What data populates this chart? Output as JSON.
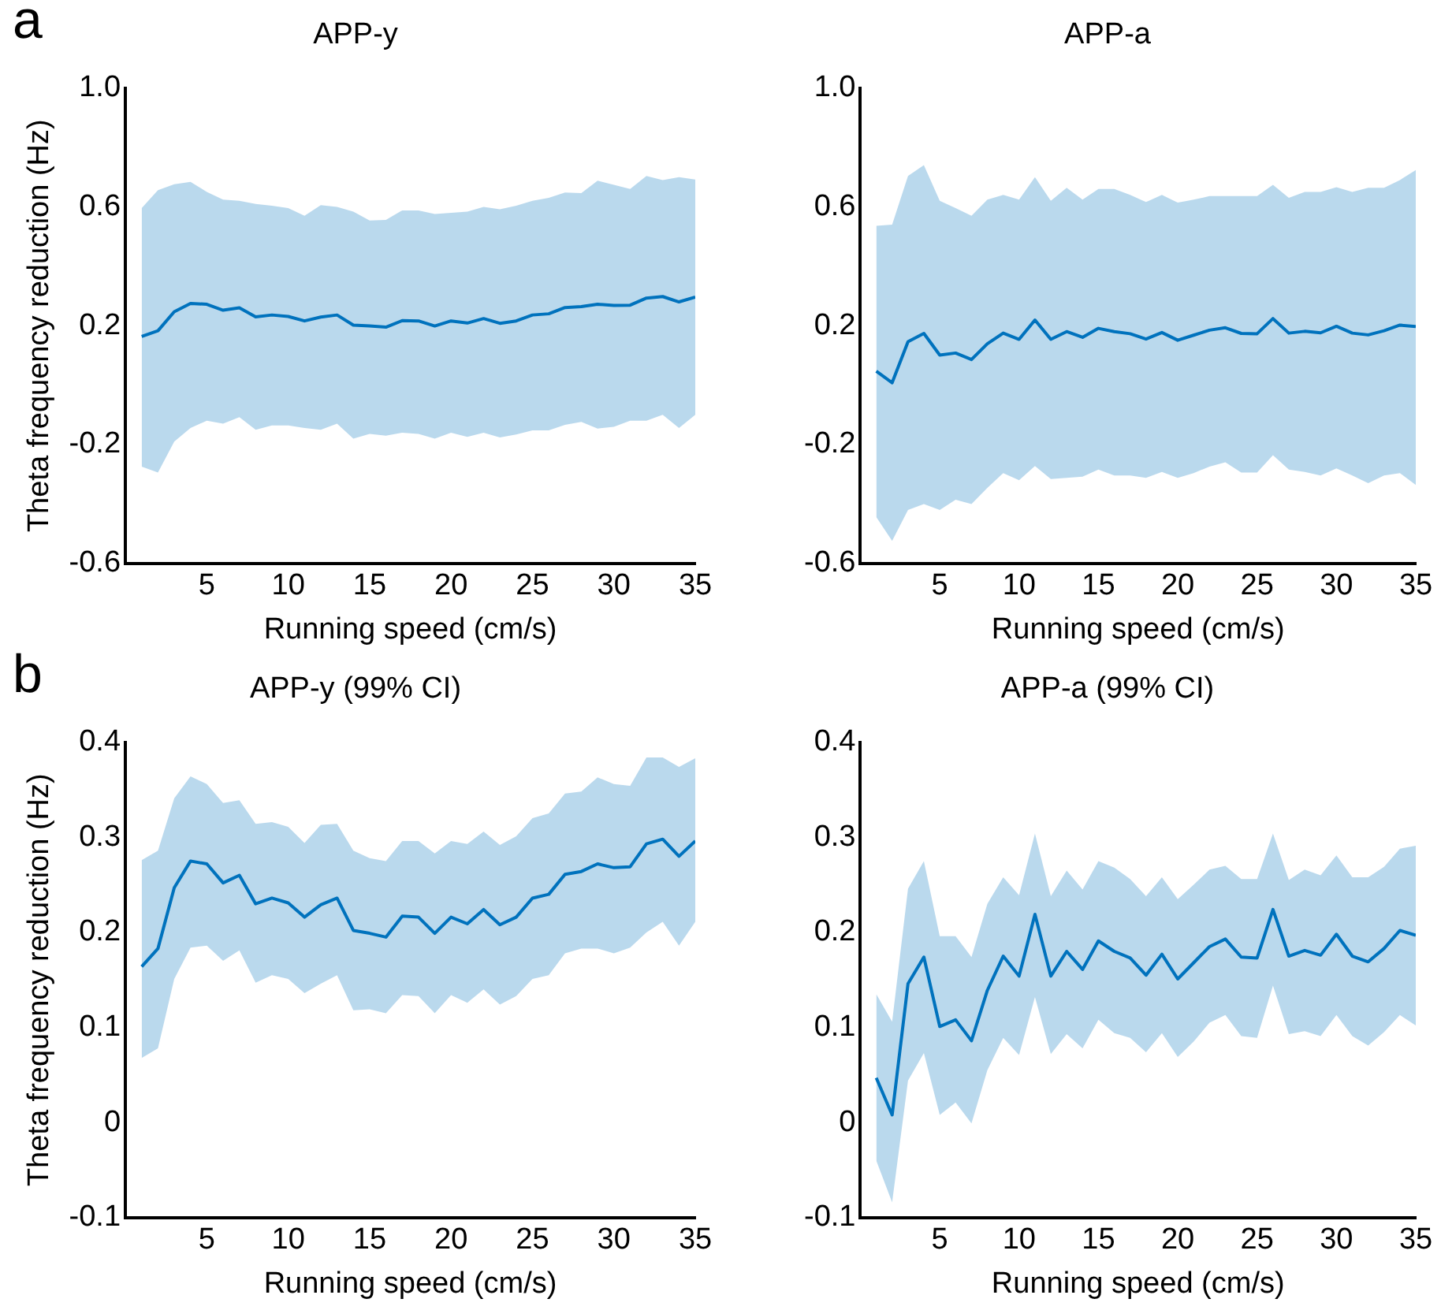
{
  "chart_data": [
    {
      "type": "line",
      "title": "APP-y",
      "xlabel": "Running speed (cm/s)",
      "ylabel": "Theta frequency reduction (Hz)",
      "annotations": [
        "a"
      ],
      "xlim": [
        0,
        35
      ],
      "xticks": [
        5,
        10,
        15,
        20,
        25,
        30,
        35
      ],
      "ylim": [
        -0.6,
        1
      ],
      "yticks": [
        -0.6,
        -0.2,
        0.2,
        0.6,
        {
          "value": 1,
          "label": "1.0"
        }
      ],
      "grid": false,
      "legend": false,
      "marker": "none",
      "line_style": "solid",
      "x": [
        1,
        2,
        3,
        4,
        5,
        6,
        7,
        8,
        9,
        10,
        11,
        12,
        13,
        14,
        15,
        16,
        17,
        18,
        19,
        20,
        21,
        22,
        23,
        24,
        25,
        26,
        27,
        28,
        29,
        30,
        31,
        32,
        33,
        34,
        35
      ],
      "series": [
        {
          "color": "#0072bd",
          "values": [
            0.164,
            0.183,
            0.247,
            0.275,
            0.272,
            0.252,
            0.26,
            0.23,
            0.236,
            0.231,
            0.216,
            0.229,
            0.236,
            0.202,
            0.199,
            0.195,
            0.217,
            0.216,
            0.199,
            0.216,
            0.209,
            0.224,
            0.208,
            0.216,
            0.236,
            0.24,
            0.261,
            0.264,
            0.272,
            0.268,
            0.269,
            0.293,
            0.298,
            0.28,
            0.296
          ],
          "upper": [
            0.596,
            0.656,
            0.676,
            0.684,
            0.65,
            0.624,
            0.62,
            0.61,
            0.604,
            0.596,
            0.57,
            0.606,
            0.6,
            0.584,
            0.554,
            0.556,
            0.588,
            0.588,
            0.576,
            0.58,
            0.584,
            0.6,
            0.592,
            0.604,
            0.62,
            0.63,
            0.648,
            0.646,
            0.688,
            0.674,
            0.66,
            0.704,
            0.69,
            0.7,
            0.692
          ],
          "lower": [
            -0.274,
            -0.294,
            -0.19,
            -0.144,
            -0.12,
            -0.13,
            -0.108,
            -0.15,
            -0.136,
            -0.136,
            -0.144,
            -0.15,
            -0.13,
            -0.18,
            -0.164,
            -0.17,
            -0.16,
            -0.164,
            -0.18,
            -0.16,
            -0.174,
            -0.16,
            -0.176,
            -0.166,
            -0.152,
            -0.152,
            -0.134,
            -0.124,
            -0.146,
            -0.14,
            -0.12,
            -0.12,
            -0.1,
            -0.144,
            -0.1
          ]
        }
      ]
    },
    {
      "type": "line",
      "title": "APP-a",
      "xlabel": "Running speed (cm/s)",
      "xlim": [
        0,
        35
      ],
      "xticks": [
        5,
        10,
        15,
        20,
        25,
        30,
        35
      ],
      "ylim": [
        -0.6,
        1
      ],
      "yticks": [
        -0.6,
        -0.2,
        0.2,
        0.6,
        {
          "value": 1,
          "label": "1.0"
        }
      ],
      "grid": false,
      "legend": false,
      "marker": "none",
      "line_style": "solid",
      "x": [
        1,
        2,
        3,
        4,
        5,
        6,
        7,
        8,
        9,
        10,
        11,
        12,
        13,
        14,
        15,
        16,
        17,
        18,
        19,
        20,
        21,
        22,
        23,
        24,
        25,
        26,
        27,
        28,
        29,
        30,
        31,
        32,
        33,
        34,
        35
      ],
      "series": [
        {
          "color": "#0072bd",
          "values": [
            0.047,
            0.008,
            0.146,
            0.174,
            0.101,
            0.108,
            0.086,
            0.139,
            0.175,
            0.154,
            0.219,
            0.154,
            0.18,
            0.161,
            0.191,
            0.18,
            0.173,
            0.155,
            0.177,
            0.151,
            0.168,
            0.185,
            0.193,
            0.174,
            0.173,
            0.224,
            0.175,
            0.181,
            0.176,
            0.198,
            0.175,
            0.169,
            0.183,
            0.202,
            0.197
          ],
          "upper": [
            0.536,
            0.54,
            0.704,
            0.74,
            0.62,
            0.596,
            0.57,
            0.624,
            0.64,
            0.624,
            0.7,
            0.62,
            0.664,
            0.624,
            0.66,
            0.66,
            0.64,
            0.616,
            0.64,
            0.614,
            0.624,
            0.636,
            0.636,
            0.636,
            0.636,
            0.674,
            0.63,
            0.65,
            0.65,
            0.666,
            0.65,
            0.664,
            0.664,
            0.69,
            0.724
          ],
          "lower": [
            -0.444,
            -0.524,
            -0.42,
            -0.4,
            -0.42,
            -0.386,
            -0.4,
            -0.346,
            -0.296,
            -0.32,
            -0.272,
            -0.316,
            -0.312,
            -0.308,
            -0.284,
            -0.304,
            -0.304,
            -0.312,
            -0.292,
            -0.312,
            -0.296,
            -0.274,
            -0.26,
            -0.294,
            -0.294,
            -0.236,
            -0.284,
            -0.292,
            -0.304,
            -0.28,
            -0.304,
            -0.33,
            -0.304,
            -0.296,
            -0.336
          ]
        }
      ]
    },
    {
      "type": "line",
      "title": "APP-y (99% CI)",
      "xlabel": "Running speed (cm/s)",
      "ylabel": "Theta frequency reduction (Hz)",
      "annotations": [
        "b"
      ],
      "xlim": [
        0,
        35
      ],
      "xticks": [
        5,
        10,
        15,
        20,
        25,
        30,
        35
      ],
      "ylim": [
        -0.1,
        0.4
      ],
      "yticks": [
        -0.1,
        0,
        0.1,
        0.2,
        0.3,
        0.4
      ],
      "grid": false,
      "legend": false,
      "marker": "none",
      "line_style": "solid",
      "x": [
        1,
        2,
        3,
        4,
        5,
        6,
        7,
        8,
        9,
        10,
        11,
        12,
        13,
        14,
        15,
        16,
        17,
        18,
        19,
        20,
        21,
        22,
        23,
        24,
        25,
        26,
        27,
        28,
        29,
        30,
        31,
        32,
        33,
        34,
        35
      ],
      "series": [
        {
          "color": "#0072bd",
          "values": [
            0.164,
            0.183,
            0.247,
            0.275,
            0.272,
            0.252,
            0.26,
            0.23,
            0.236,
            0.231,
            0.216,
            0.229,
            0.236,
            0.202,
            0.199,
            0.195,
            0.217,
            0.216,
            0.199,
            0.216,
            0.209,
            0.224,
            0.208,
            0.216,
            0.236,
            0.24,
            0.261,
            0.264,
            0.272,
            0.268,
            0.269,
            0.293,
            0.298,
            0.28,
            0.296
          ],
          "upper": [
            0.276,
            0.286,
            0.341,
            0.364,
            0.356,
            0.336,
            0.339,
            0.314,
            0.316,
            0.311,
            0.294,
            0.313,
            0.314,
            0.286,
            0.278,
            0.275,
            0.296,
            0.296,
            0.283,
            0.296,
            0.293,
            0.306,
            0.292,
            0.301,
            0.32,
            0.325,
            0.346,
            0.348,
            0.363,
            0.356,
            0.354,
            0.384,
            0.384,
            0.374,
            0.383
          ],
          "lower": [
            0.068,
            0.078,
            0.151,
            0.184,
            0.186,
            0.17,
            0.181,
            0.147,
            0.155,
            0.151,
            0.136,
            0.146,
            0.155,
            0.118,
            0.119,
            0.115,
            0.134,
            0.133,
            0.115,
            0.134,
            0.126,
            0.14,
            0.124,
            0.133,
            0.151,
            0.155,
            0.178,
            0.183,
            0.183,
            0.178,
            0.184,
            0.2,
            0.211,
            0.186,
            0.211
          ]
        }
      ]
    },
    {
      "type": "line",
      "title": "APP-a (99% CI)",
      "xlabel": "Running speed (cm/s)",
      "xlim": [
        0,
        35
      ],
      "xticks": [
        5,
        10,
        15,
        20,
        25,
        30,
        35
      ],
      "ylim": [
        -0.1,
        0.4
      ],
      "yticks": [
        -0.1,
        0,
        0.1,
        0.2,
        0.3,
        0.4
      ],
      "grid": false,
      "legend": false,
      "marker": "none",
      "line_style": "solid",
      "x": [
        1,
        2,
        3,
        4,
        5,
        6,
        7,
        8,
        9,
        10,
        11,
        12,
        13,
        14,
        15,
        16,
        17,
        18,
        19,
        20,
        21,
        22,
        23,
        24,
        25,
        26,
        27,
        28,
        29,
        30,
        31,
        32,
        33,
        34,
        35
      ],
      "series": [
        {
          "color": "#0072bd",
          "values": [
            0.047,
            0.008,
            0.146,
            0.174,
            0.101,
            0.108,
            0.086,
            0.139,
            0.175,
            0.154,
            0.219,
            0.154,
            0.18,
            0.161,
            0.191,
            0.18,
            0.173,
            0.155,
            0.177,
            0.151,
            0.168,
            0.185,
            0.193,
            0.174,
            0.173,
            0.224,
            0.175,
            0.181,
            0.176,
            0.198,
            0.175,
            0.169,
            0.183,
            0.202,
            0.197
          ],
          "upper": [
            0.135,
            0.106,
            0.246,
            0.275,
            0.196,
            0.196,
            0.174,
            0.23,
            0.258,
            0.239,
            0.304,
            0.238,
            0.265,
            0.245,
            0.275,
            0.268,
            0.256,
            0.238,
            0.258,
            0.235,
            0.25,
            0.266,
            0.27,
            0.256,
            0.256,
            0.304,
            0.255,
            0.266,
            0.26,
            0.281,
            0.258,
            0.258,
            0.269,
            0.288,
            0.291
          ],
          "lower": [
            -0.04,
            -0.084,
            0.044,
            0.073,
            0.008,
            0.021,
            -0.001,
            0.055,
            0.089,
            0.071,
            0.132,
            0.072,
            0.093,
            0.078,
            0.108,
            0.094,
            0.089,
            0.074,
            0.094,
            0.069,
            0.085,
            0.105,
            0.113,
            0.091,
            0.089,
            0.144,
            0.093,
            0.096,
            0.091,
            0.113,
            0.091,
            0.081,
            0.095,
            0.113,
            0.102
          ]
        }
      ]
    }
  ]
}
